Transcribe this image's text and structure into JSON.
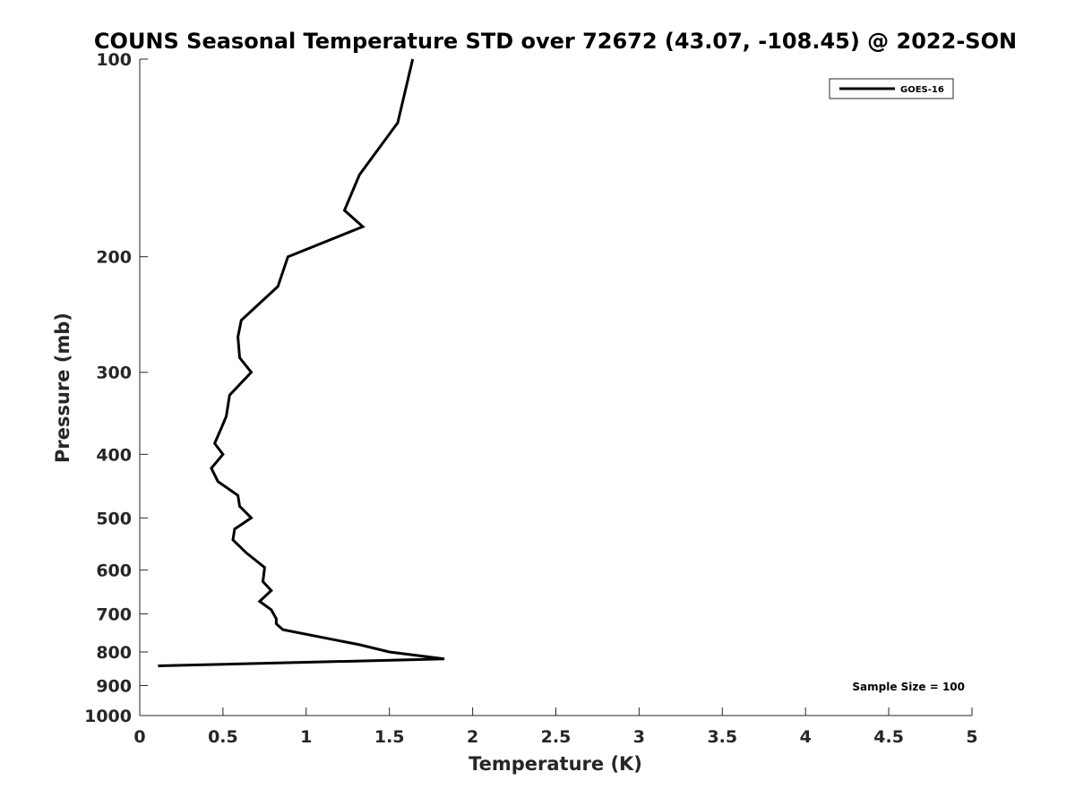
{
  "chart_data": {
    "type": "line",
    "title": "COUNS Seasonal Temperature STD over 72672 (43.07, -108.45) @ 2022-SON",
    "xlabel": "Temperature (K)",
    "ylabel": "Pressure (mb)",
    "xlim": [
      0,
      5
    ],
    "ylim": [
      100,
      1000
    ],
    "y_scale": "log",
    "y_reversed": true,
    "x_ticks": [
      0,
      0.5,
      1,
      1.5,
      2,
      2.5,
      3,
      3.5,
      4,
      4.5,
      5
    ],
    "x_tick_labels": [
      "0",
      "0.5",
      "1",
      "1.5",
      "2",
      "2.5",
      "3",
      "3.5",
      "4",
      "4.5",
      "5"
    ],
    "y_ticks": [
      100,
      200,
      300,
      400,
      500,
      600,
      700,
      800,
      900,
      1000
    ],
    "y_tick_labels": [
      "100",
      "200",
      "300",
      "400",
      "500",
      "600",
      "700",
      "800",
      "900",
      "1000"
    ],
    "grid": false,
    "legend_position": "top-right",
    "annotation": "Sample Size = 100",
    "series": [
      {
        "name": "GOES-16",
        "color": "#000000",
        "points": [
          [
            1.64,
            100
          ],
          [
            1.55,
            125
          ],
          [
            1.32,
            150
          ],
          [
            1.23,
            170
          ],
          [
            1.34,
            180
          ],
          [
            0.89,
            200
          ],
          [
            0.83,
            222
          ],
          [
            0.61,
            250
          ],
          [
            0.59,
            265
          ],
          [
            0.6,
            285
          ],
          [
            0.67,
            300
          ],
          [
            0.54,
            325
          ],
          [
            0.52,
            350
          ],
          [
            0.49,
            365
          ],
          [
            0.45,
            385
          ],
          [
            0.5,
            400
          ],
          [
            0.43,
            420
          ],
          [
            0.47,
            440
          ],
          [
            0.59,
            462
          ],
          [
            0.6,
            480
          ],
          [
            0.67,
            500
          ],
          [
            0.57,
            520
          ],
          [
            0.56,
            540
          ],
          [
            0.64,
            565
          ],
          [
            0.75,
            595
          ],
          [
            0.74,
            625
          ],
          [
            0.79,
            645
          ],
          [
            0.72,
            670
          ],
          [
            0.79,
            690
          ],
          [
            0.82,
            712
          ],
          [
            0.82,
            725
          ],
          [
            0.86,
            740
          ],
          [
            1.32,
            780
          ],
          [
            1.5,
            800
          ],
          [
            1.83,
            820
          ],
          [
            0.11,
            840
          ]
        ]
      }
    ]
  }
}
